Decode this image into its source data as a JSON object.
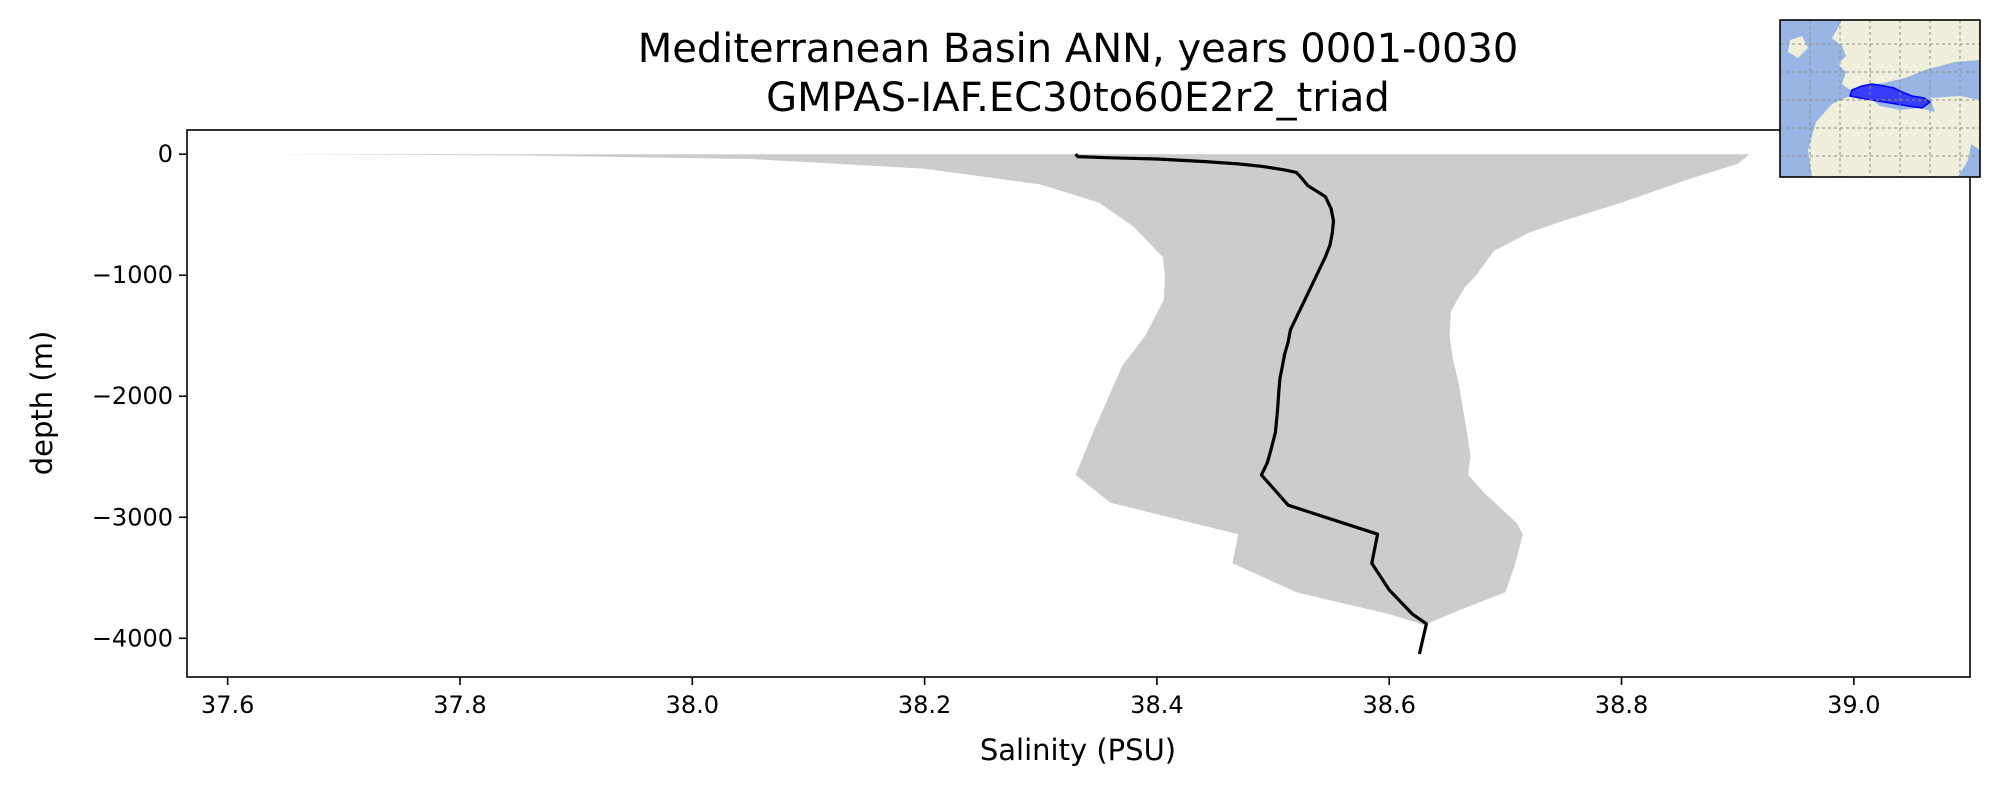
{
  "chart_data": {
    "type": "line",
    "title": "Mediterranean Basin ANN, years 0001-0030",
    "subtitle": "GMPAS-IAF.EC30to60E2r2_triad",
    "xlabel": "Salinity (PSU)",
    "ylabel": "depth (m)",
    "xlim": [
      37.565,
      39.1
    ],
    "ylim": [
      -4320,
      200
    ],
    "xticks": [
      37.6,
      37.8,
      38.0,
      38.2,
      38.4,
      38.6,
      38.8,
      39.0
    ],
    "xtick_labels": [
      "37.6",
      "37.8",
      "38.0",
      "38.2",
      "38.4",
      "38.6",
      "38.8",
      "39.0"
    ],
    "yticks": [
      0,
      -1000,
      -2000,
      -3000,
      -4000
    ],
    "ytick_labels": [
      "0",
      "−1000",
      "−2000",
      "−3000",
      "−4000"
    ],
    "grid": false,
    "series": [
      {
        "kind": "line",
        "color": "#000000",
        "points": [
          [
            38.33,
            0
          ],
          [
            38.332,
            -20
          ],
          [
            38.36,
            -30
          ],
          [
            38.4,
            -40
          ],
          [
            38.44,
            -60
          ],
          [
            38.47,
            -80
          ],
          [
            38.49,
            -100
          ],
          [
            38.51,
            -130
          ],
          [
            38.52,
            -150
          ],
          [
            38.523,
            -180
          ],
          [
            38.53,
            -260
          ],
          [
            38.545,
            -350
          ],
          [
            38.55,
            -450
          ],
          [
            38.552,
            -550
          ],
          [
            38.551,
            -650
          ],
          [
            38.549,
            -750
          ],
          [
            38.545,
            -850
          ],
          [
            38.54,
            -950
          ],
          [
            38.535,
            -1050
          ],
          [
            38.53,
            -1150
          ],
          [
            38.525,
            -1250
          ],
          [
            38.52,
            -1350
          ],
          [
            38.515,
            -1450
          ],
          [
            38.513,
            -1550
          ],
          [
            38.51,
            -1650
          ],
          [
            38.508,
            -1750
          ],
          [
            38.506,
            -1850
          ],
          [
            38.505,
            -1950
          ],
          [
            38.504,
            -2100
          ],
          [
            38.502,
            -2300
          ],
          [
            38.498,
            -2450
          ],
          [
            38.495,
            -2550
          ],
          [
            38.49,
            -2650
          ],
          [
            38.513,
            -2900
          ],
          [
            38.59,
            -3140
          ],
          [
            38.585,
            -3380
          ],
          [
            38.6,
            -3600
          ],
          [
            38.62,
            -3800
          ],
          [
            38.632,
            -3880
          ],
          [
            38.626,
            -4130
          ]
        ]
      },
      {
        "kind": "band",
        "color": "#cccccc",
        "lower": [
          [
            37.63,
            0
          ],
          [
            37.85,
            -10
          ],
          [
            38.05,
            -40
          ],
          [
            38.2,
            -120
          ],
          [
            38.3,
            -250
          ],
          [
            38.35,
            -400
          ],
          [
            38.38,
            -600
          ],
          [
            38.39,
            -700
          ],
          [
            38.405,
            -850
          ],
          [
            38.407,
            -1000
          ],
          [
            38.406,
            -1200
          ],
          [
            38.39,
            -1500
          ],
          [
            38.37,
            -1750
          ],
          [
            38.345,
            -2300
          ],
          [
            38.33,
            -2650
          ],
          [
            38.36,
            -2880
          ],
          [
            38.47,
            -3140
          ],
          [
            38.465,
            -3380
          ],
          [
            38.52,
            -3620
          ],
          [
            38.6,
            -3800
          ],
          [
            38.63,
            -3890
          ]
        ],
        "upper": [
          [
            38.91,
            0
          ],
          [
            38.9,
            -80
          ],
          [
            38.86,
            -200
          ],
          [
            38.83,
            -300
          ],
          [
            38.8,
            -400
          ],
          [
            38.75,
            -550
          ],
          [
            38.72,
            -650
          ],
          [
            38.69,
            -800
          ],
          [
            38.675,
            -1000
          ],
          [
            38.665,
            -1100
          ],
          [
            38.653,
            -1300
          ],
          [
            38.652,
            -1500
          ],
          [
            38.655,
            -1700
          ],
          [
            38.66,
            -1900
          ],
          [
            38.667,
            -2300
          ],
          [
            38.67,
            -2500
          ],
          [
            38.668,
            -2650
          ],
          [
            38.682,
            -2800
          ],
          [
            38.71,
            -3050
          ],
          [
            38.715,
            -3140
          ],
          [
            38.708,
            -3400
          ],
          [
            38.7,
            -3620
          ],
          [
            38.66,
            -3770
          ],
          [
            38.63,
            -3890
          ]
        ]
      }
    ]
  },
  "inset_map": {
    "ocean_color": "#98b5e3",
    "land_color": "#efefdc",
    "basin_color": "#1f1fff",
    "grid_color": "#8c8c8c"
  }
}
